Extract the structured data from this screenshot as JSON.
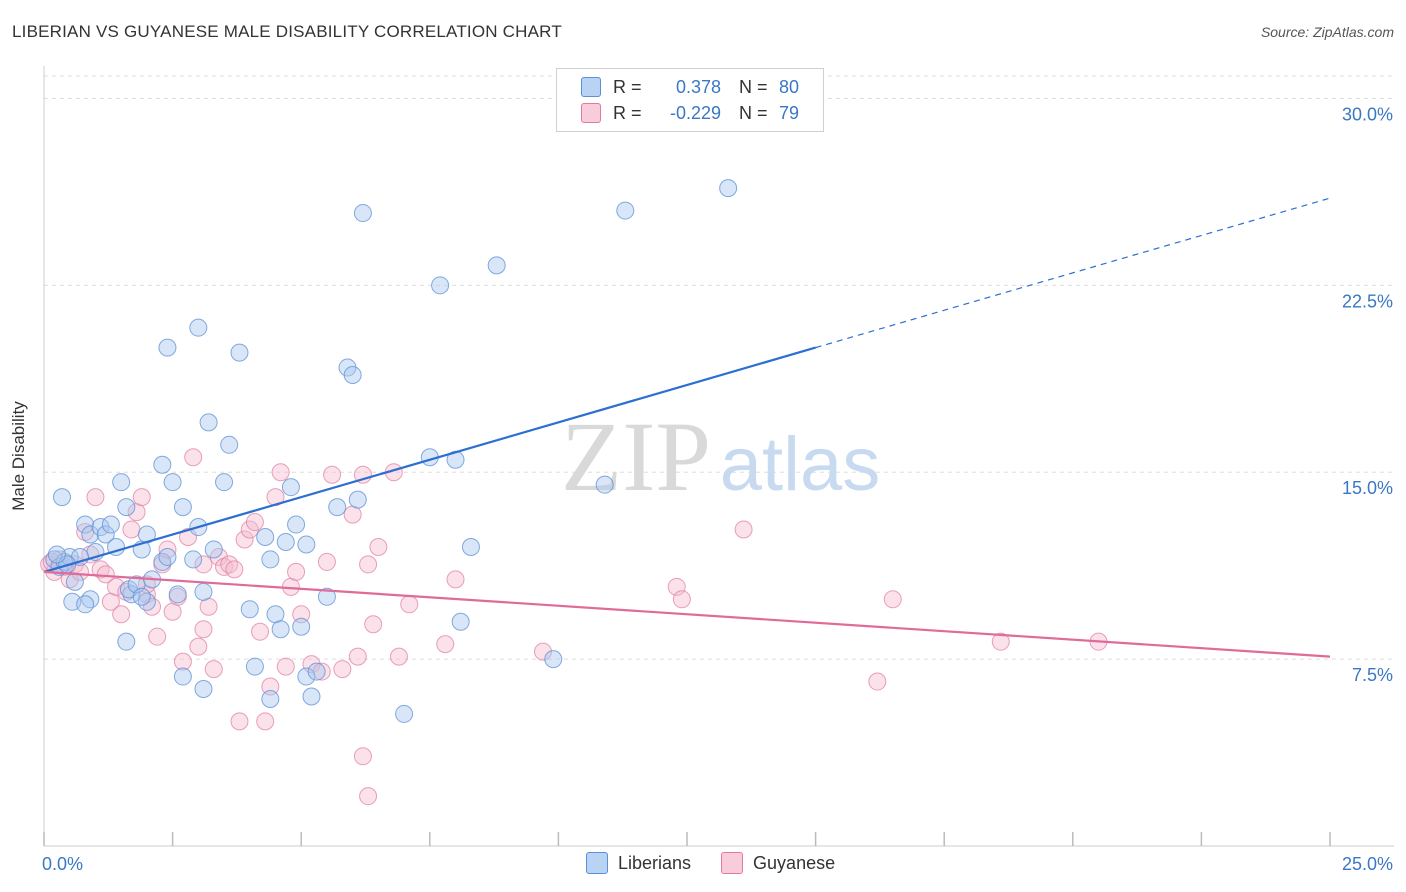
{
  "header": {
    "title": "LIBERIAN VS GUYANESE MALE DISABILITY CORRELATION CHART",
    "source": "Source: ZipAtlas.com"
  },
  "watermark": {
    "zip": "ZIP",
    "atlas": "atlas"
  },
  "legend_top": {
    "rows": [
      {
        "r_label": "R =",
        "r_value": "0.378",
        "n_label": "N =",
        "n_value": "80"
      },
      {
        "r_label": "R =",
        "r_value": "-0.229",
        "n_label": "N =",
        "n_value": "79"
      }
    ]
  },
  "legend_bottom": {
    "items": [
      {
        "label": "Liberians"
      },
      {
        "label": "Guyanese"
      }
    ]
  },
  "colors": {
    "liberians_fill": "#a9c8f0",
    "liberians_stroke": "#5b8fd6",
    "liberians_line": "#2d6fd0",
    "guyanese_fill": "#f5bcd0",
    "guyanese_stroke": "#e07ba0",
    "guyanese_line": "#e06a98",
    "tick_label": "#3a78c4",
    "grid": "#dddddd"
  },
  "chart_data": {
    "type": "scatter",
    "title": "LIBERIAN VS GUYANESE MALE DISABILITY CORRELATION CHART",
    "xlabel": "",
    "ylabel": "Male Disability",
    "xlim": [
      0,
      25
    ],
    "ylim": [
      0,
      30.9
    ],
    "x_tick_labels": [
      {
        "value": 0,
        "label": "0.0%"
      },
      {
        "value": 25,
        "label": "25.0%"
      }
    ],
    "y_ticks": [
      {
        "value": 7.5,
        "label": "7.5%"
      },
      {
        "value": 15.0,
        "label": "15.0%"
      },
      {
        "value": 22.5,
        "label": "22.5%"
      },
      {
        "value": 30.0,
        "label": "30.0%"
      }
    ],
    "grid": true,
    "legend_position": "top-center",
    "series": [
      {
        "name": "Liberians",
        "r": 0.378,
        "n": 80,
        "trend": {
          "x0": 0.0,
          "y0": 11.0,
          "x1": 15.0,
          "y1": 20.0,
          "dashed_to_x": 25.0,
          "dashed_to_y": 26.0
        },
        "points": [
          [
            0.2,
            11.5
          ],
          [
            0.3,
            11.2
          ],
          [
            0.4,
            11.4
          ],
          [
            0.5,
            11.6
          ],
          [
            0.6,
            10.6
          ],
          [
            0.8,
            12.9
          ],
          [
            0.9,
            12.5
          ],
          [
            1.0,
            11.8
          ],
          [
            1.1,
            12.8
          ],
          [
            1.2,
            12.5
          ],
          [
            0.35,
            14.0
          ],
          [
            0.55,
            9.8
          ],
          [
            0.9,
            9.9
          ],
          [
            1.4,
            12.0
          ],
          [
            1.5,
            14.6
          ],
          [
            1.6,
            13.6
          ],
          [
            1.7,
            10.1
          ],
          [
            1.9,
            11.9
          ],
          [
            2.0,
            12.5
          ],
          [
            1.65,
            10.3
          ],
          [
            1.6,
            8.2
          ],
          [
            1.8,
            10.5
          ],
          [
            2.0,
            9.8
          ],
          [
            2.1,
            10.7
          ],
          [
            2.3,
            11.4
          ],
          [
            2.4,
            11.6
          ],
          [
            2.5,
            14.6
          ],
          [
            2.6,
            10.1
          ],
          [
            2.7,
            13.6
          ],
          [
            2.9,
            11.5
          ],
          [
            3.0,
            12.8
          ],
          [
            3.1,
            10.2
          ],
          [
            3.2,
            17.0
          ],
          [
            3.3,
            11.9
          ],
          [
            3.5,
            14.6
          ],
          [
            3.6,
            16.1
          ],
          [
            3.8,
            19.8
          ],
          [
            4.0,
            9.5
          ],
          [
            4.1,
            7.2
          ],
          [
            4.3,
            12.4
          ],
          [
            4.4,
            11.5
          ],
          [
            4.5,
            9.3
          ],
          [
            4.6,
            8.7
          ],
          [
            4.7,
            12.2
          ],
          [
            4.8,
            14.4
          ],
          [
            4.9,
            12.9
          ],
          [
            5.0,
            8.8
          ],
          [
            5.1,
            12.1
          ],
          [
            5.2,
            6.0
          ],
          [
            5.1,
            6.8
          ],
          [
            5.3,
            7.0
          ],
          [
            5.5,
            10.0
          ],
          [
            5.7,
            13.6
          ],
          [
            5.9,
            19.2
          ],
          [
            6.0,
            18.9
          ],
          [
            6.1,
            13.9
          ],
          [
            6.2,
            25.4
          ],
          [
            7.0,
            5.3
          ],
          [
            7.5,
            15.6
          ],
          [
            7.7,
            22.5
          ],
          [
            8.0,
            15.5
          ],
          [
            8.1,
            9.0
          ],
          [
            8.3,
            12.0
          ],
          [
            8.8,
            23.3
          ],
          [
            9.9,
            7.5
          ],
          [
            10.9,
            14.5
          ],
          [
            11.3,
            25.5
          ],
          [
            13.3,
            26.4
          ],
          [
            2.4,
            20.0
          ],
          [
            3.0,
            20.8
          ],
          [
            0.7,
            11.6
          ],
          [
            0.45,
            11.3
          ],
          [
            1.3,
            12.9
          ],
          [
            2.7,
            6.8
          ],
          [
            3.1,
            6.3
          ],
          [
            2.3,
            15.3
          ],
          [
            0.8,
            9.7
          ],
          [
            1.9,
            10.0
          ],
          [
            4.4,
            5.9
          ],
          [
            0.25,
            11.7
          ]
        ]
      },
      {
        "name": "Guyanese",
        "r": -0.229,
        "n": 79,
        "trend": {
          "x0": 0.0,
          "y0": 11.0,
          "x1": 25.0,
          "y1": 7.6
        },
        "points": [
          [
            0.1,
            11.3
          ],
          [
            0.2,
            11.0
          ],
          [
            0.3,
            11.5
          ],
          [
            0.4,
            11.2
          ],
          [
            0.5,
            10.7
          ],
          [
            0.6,
            11.3
          ],
          [
            0.7,
            11.0
          ],
          [
            0.8,
            12.6
          ],
          [
            0.9,
            11.7
          ],
          [
            1.0,
            14.0
          ],
          [
            1.1,
            11.1
          ],
          [
            1.2,
            10.9
          ],
          [
            1.3,
            9.8
          ],
          [
            1.4,
            10.4
          ],
          [
            1.5,
            9.3
          ],
          [
            1.6,
            10.2
          ],
          [
            1.7,
            12.7
          ],
          [
            1.8,
            13.4
          ],
          [
            1.9,
            14.0
          ],
          [
            2.0,
            10.1
          ],
          [
            2.1,
            9.6
          ],
          [
            2.2,
            8.4
          ],
          [
            2.3,
            11.3
          ],
          [
            2.4,
            11.9
          ],
          [
            2.5,
            9.4
          ],
          [
            2.6,
            10.0
          ],
          [
            2.7,
            7.4
          ],
          [
            2.8,
            12.4
          ],
          [
            2.9,
            15.6
          ],
          [
            3.0,
            8.0
          ],
          [
            3.1,
            11.3
          ],
          [
            3.2,
            9.6
          ],
          [
            3.3,
            7.1
          ],
          [
            3.4,
            11.6
          ],
          [
            3.5,
            11.2
          ],
          [
            3.6,
            11.3
          ],
          [
            3.7,
            11.1
          ],
          [
            3.8,
            5.0
          ],
          [
            3.9,
            12.3
          ],
          [
            4.0,
            12.7
          ],
          [
            4.1,
            13.0
          ],
          [
            4.2,
            8.6
          ],
          [
            4.3,
            5.0
          ],
          [
            4.4,
            6.4
          ],
          [
            4.5,
            14.0
          ],
          [
            4.6,
            15.0
          ],
          [
            4.7,
            7.2
          ],
          [
            4.8,
            10.4
          ],
          [
            4.9,
            11.0
          ],
          [
            5.0,
            9.3
          ],
          [
            5.2,
            7.3
          ],
          [
            5.4,
            7.0
          ],
          [
            5.5,
            11.4
          ],
          [
            5.6,
            14.9
          ],
          [
            5.8,
            7.1
          ],
          [
            6.0,
            13.3
          ],
          [
            6.1,
            7.6
          ],
          [
            6.2,
            14.9
          ],
          [
            6.3,
            11.3
          ],
          [
            6.4,
            8.9
          ],
          [
            6.5,
            12.0
          ],
          [
            6.8,
            15.0
          ],
          [
            6.9,
            7.6
          ],
          [
            7.1,
            9.7
          ],
          [
            7.8,
            8.1
          ],
          [
            8.0,
            10.7
          ],
          [
            9.7,
            7.8
          ],
          [
            12.3,
            10.4
          ],
          [
            12.4,
            9.9
          ],
          [
            13.6,
            12.7
          ],
          [
            16.2,
            6.6
          ],
          [
            16.5,
            9.9
          ],
          [
            18.6,
            8.2
          ],
          [
            20.5,
            8.2
          ],
          [
            6.3,
            2.0
          ],
          [
            6.2,
            3.6
          ],
          [
            3.1,
            8.7
          ],
          [
            2.0,
            10.5
          ],
          [
            0.15,
            11.4
          ]
        ]
      }
    ]
  }
}
